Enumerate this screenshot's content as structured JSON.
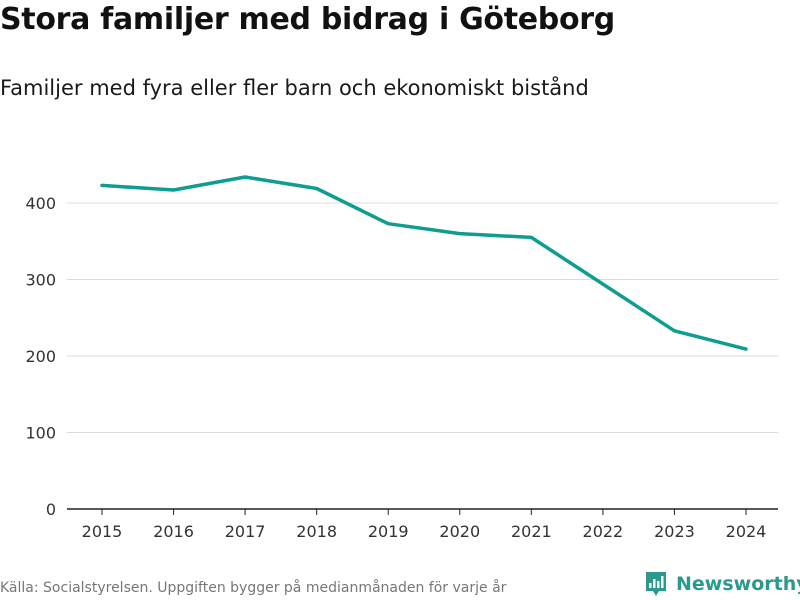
{
  "title": "Stora familjer med bidrag i Göteborg",
  "subtitle": "Familjer med fyra eller fler barn och ekonomiskt bistånd",
  "footer": {
    "source": "Källa: Socialstyrelsen. Uppgiften bygger på medianmånaden för varje år"
  },
  "brand": {
    "name": "Newsworthy",
    "icon": "newsworthy-logo-icon",
    "color": "#2a9a8c"
  },
  "chart_data": {
    "type": "line",
    "title": "Stora familjer med bidrag i Göteborg",
    "subtitle": "Familjer med fyra eller fler barn och ekonomiskt bistånd",
    "xlabel": "",
    "ylabel": "",
    "x": [
      "2015",
      "2016",
      "2017",
      "2018",
      "2019",
      "2020",
      "2021",
      "2022",
      "2023",
      "2024"
    ],
    "series": [
      {
        "name": "Familjer med fyra eller fler barn",
        "values": [
          423,
          417,
          434,
          419,
          373,
          360,
          355,
          294,
          233,
          209
        ],
        "color": "#0f9d91"
      }
    ],
    "ylim": [
      0,
      460
    ],
    "yticks": [
      0,
      100,
      200,
      300,
      400
    ],
    "yticklabels": [
      "0",
      "100",
      "200",
      "300",
      "400"
    ],
    "grid": true,
    "legend": "none"
  }
}
